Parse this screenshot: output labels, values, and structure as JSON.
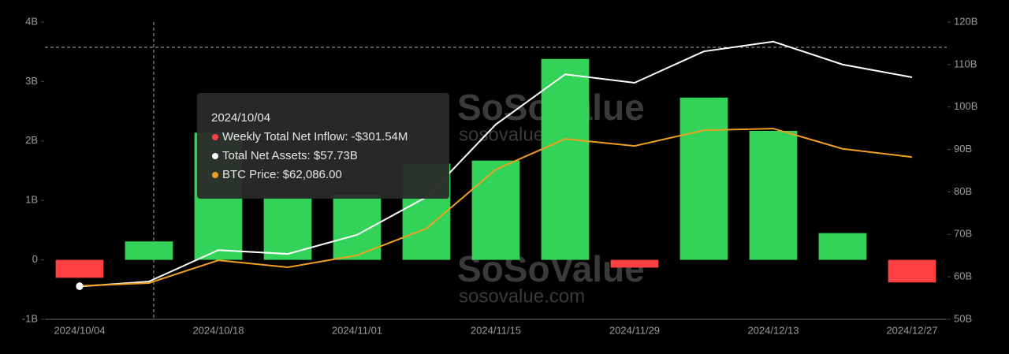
{
  "chart_data": {
    "type": "bar-line",
    "categories": [
      "2024/10/04",
      null,
      "2024/10/18",
      null,
      "2024/11/01",
      null,
      "2024/11/15",
      null,
      "2024/11/29",
      null,
      "2024/12/13",
      null,
      "2024/12/27"
    ],
    "series": [
      {
        "type": "bar",
        "color": "#33d35a",
        "negative_color": "#ff4040",
        "values": [
          -0.30154,
          0.31,
          2.14,
          1.05,
          1.1,
          1.62,
          1.67,
          3.38,
          -0.13,
          2.73,
          2.17,
          0.45,
          -0.38
        ]
      },
      {
        "type": "line",
        "axis": "y2",
        "color": "#ffffff",
        "values": [
          57.73,
          58.9,
          66.3,
          65.4,
          69.9,
          78.8,
          95.9,
          107.7,
          105.7,
          113.1,
          115.4,
          110.0,
          107.0
        ]
      },
      {
        "type": "line",
        "axis": "y3",
        "color": "#f0a020",
        "values": [
          62086,
          62786,
          68300,
          66600,
          69500,
          76000,
          90300,
          97700,
          96000,
          99800,
          100200,
          95300,
          93300
        ]
      }
    ],
    "ylim": [
      -1,
      4
    ],
    "yticks": [
      {
        "value": -1,
        "label": "-1B"
      },
      0,
      {
        "value": 1,
        "label": "1B"
      },
      {
        "value": 2,
        "label": "2B"
      },
      {
        "value": 3,
        "label": "3B"
      },
      {
        "value": 4,
        "label": "4B"
      }
    ],
    "y2lim": [
      50,
      120
    ],
    "y2ticks": [
      {
        "value": 50,
        "label": "50B"
      },
      {
        "value": 60,
        "label": "60B"
      },
      {
        "value": 70,
        "label": "70B"
      },
      {
        "value": 80,
        "label": "80B"
      },
      {
        "value": 90,
        "label": "90B"
      },
      {
        "value": 100,
        "label": "100B"
      },
      {
        "value": 110,
        "label": "110B"
      },
      {
        "value": 120,
        "label": "120B"
      }
    ],
    "y3lim": [
      54000,
      126000
    ],
    "tooltip": {
      "title": "2024/10/04",
      "items": [
        {
          "text": "Weekly Total Net Inflow: -$301.54M",
          "color": "#ff4040"
        },
        {
          "text": "Total Net Assets: $57.73B",
          "color": "#ffffff"
        },
        {
          "text": "BTC Price: $62,086.00",
          "color": "#f0a020"
        }
      ]
    },
    "watermarks": [
      "SoSoValue",
      "sosovalue.com"
    ]
  }
}
